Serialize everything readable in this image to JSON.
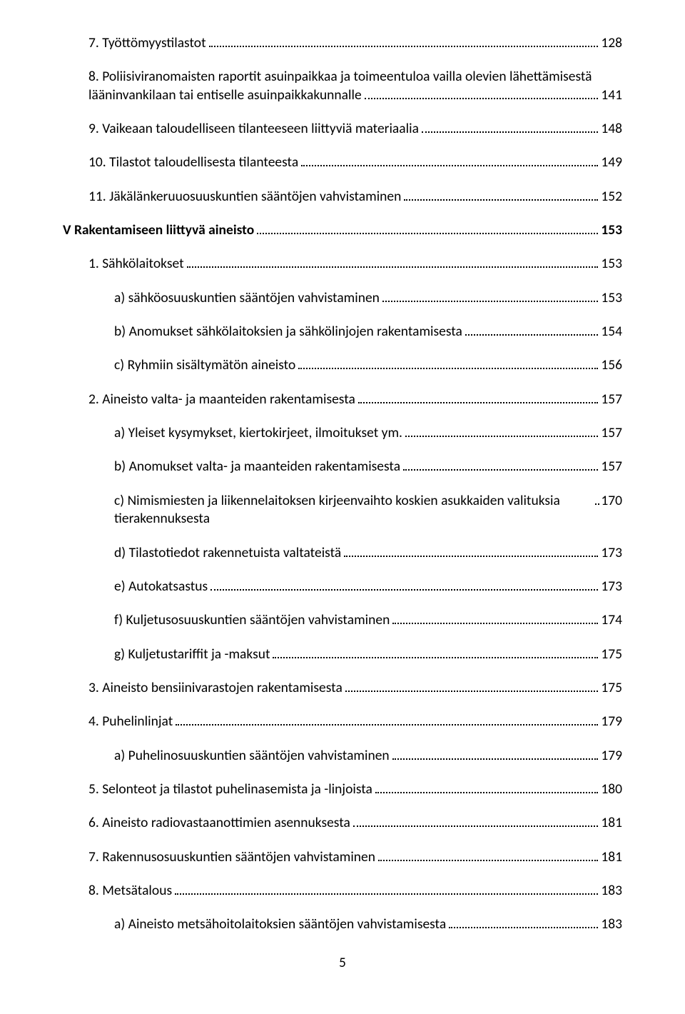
{
  "footer_page_number": "5",
  "entries": [
    {
      "label": "7. Työttömyystilastot",
      "page": "128",
      "indent": 1,
      "heading": false
    },
    {
      "label_line1": "8. Poliisiviranomaisten raportit asuinpaikkaa ja toimeentuloa vailla olevien lähettämisestä",
      "label_line2": "lääninvankilaan tai entiselle asuinpaikkakunnalle",
      "page": "141",
      "indent": 1,
      "heading": false,
      "twoline": true
    },
    {
      "label": "9. Vaikeaan taloudelliseen tilanteeseen liittyviä materiaalia",
      "page": "148",
      "indent": 1,
      "heading": false
    },
    {
      "label": "10. Tilastot taloudellisesta tilanteesta",
      "page": "149",
      "indent": 1,
      "heading": false
    },
    {
      "label": "11. Jäkälänkeruuosuuskuntien sääntöjen vahvistaminen",
      "page": "152",
      "indent": 1,
      "heading": false
    },
    {
      "label": "V Rakentamiseen liittyvä aineisto",
      "page": "153",
      "indent": 0,
      "heading": true
    },
    {
      "label": "1. Sähkölaitokset",
      "page": "153",
      "indent": 1,
      "heading": false
    },
    {
      "label": "a) sähköosuuskuntien sääntöjen vahvistaminen",
      "page": "153",
      "indent": 2,
      "heading": false
    },
    {
      "label": "b) Anomukset sähkölaitoksien ja sähkölinjojen rakentamisesta",
      "page": "154",
      "indent": 2,
      "heading": false
    },
    {
      "label": "c) Ryhmiin sisältymätön aineisto",
      "page": "156",
      "indent": 2,
      "heading": false
    },
    {
      "label": "2. Aineisto valta- ja maanteiden rakentamisesta",
      "page": "157",
      "indent": 1,
      "heading": false
    },
    {
      "label": "a) Yleiset kysymykset, kiertokirjeet, ilmoitukset ym.",
      "page": "157",
      "indent": 2,
      "heading": false
    },
    {
      "label": "b) Anomukset valta- ja maanteiden rakentamisesta",
      "page": "157",
      "indent": 2,
      "heading": false
    },
    {
      "label": "c) Nimismiesten ja liikennelaitoksen kirjeenvaihto koskien asukkaiden valituksia tierakennuksesta",
      "page": "170",
      "indent": 2,
      "heading": false,
      "tight": true
    },
    {
      "label": "d) Tilastotiedot rakennetuista valtateistä",
      "page": "173",
      "indent": 2,
      "heading": false
    },
    {
      "label": "e) Autokatsastus",
      "page": "173",
      "indent": 2,
      "heading": false
    },
    {
      "label": "f) Kuljetusosuuskuntien sääntöjen vahvistaminen",
      "page": "174",
      "indent": 2,
      "heading": false
    },
    {
      "label": "g) Kuljetustariffit ja -maksut",
      "page": "175",
      "indent": 2,
      "heading": false
    },
    {
      "label": "3. Aineisto bensiinivarastojen rakentamisesta",
      "page": "175",
      "indent": 1,
      "heading": false
    },
    {
      "label": "4. Puhelinlinjat",
      "page": "179",
      "indent": 1,
      "heading": false
    },
    {
      "label": "a) Puhelinosuuskuntien sääntöjen vahvistaminen",
      "page": "179",
      "indent": 2,
      "heading": false
    },
    {
      "label": "5. Selonteot ja tilastot puhelinasemista ja -linjoista",
      "page": "180",
      "indent": 1,
      "heading": false
    },
    {
      "label": "6. Aineisto radiovastaanottimien asennuksesta",
      "page": "181",
      "indent": 1,
      "heading": false
    },
    {
      "label": "7. Rakennusosuuskuntien sääntöjen vahvistaminen",
      "page": "181",
      "indent": 1,
      "heading": false
    },
    {
      "label": "8. Metsätalous",
      "page": "183",
      "indent": 1,
      "heading": false
    },
    {
      "label": "a) Aineisto metsähoitolaitoksien sääntöjen vahvistamisesta",
      "page": "183",
      "indent": 2,
      "heading": false
    }
  ]
}
